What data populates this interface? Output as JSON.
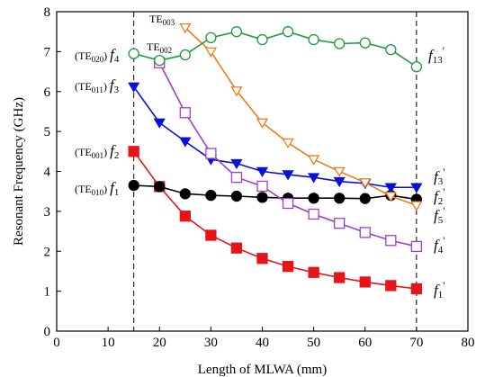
{
  "chart_data": {
    "type": "line",
    "title": "",
    "xlabel": "Length of MLWA (mm)",
    "ylabel": "Resonant Frequency (GHz)",
    "xlim": [
      0,
      80
    ],
    "ylim": [
      0,
      8
    ],
    "xticks": [
      0,
      10,
      20,
      30,
      40,
      50,
      60,
      70,
      80
    ],
    "yticks": [
      0,
      1,
      2,
      3,
      4,
      5,
      6,
      7,
      8
    ],
    "grid": false,
    "legend": "none",
    "reference_lines_x": [
      15,
      70
    ],
    "series": [
      {
        "id": "f1",
        "color": "#e8141a",
        "marker": "square-filled",
        "x": [
          15,
          20,
          25,
          30,
          35,
          40,
          45,
          50,
          55,
          60,
          65,
          70
        ],
        "y": [
          4.5,
          3.62,
          2.88,
          2.4,
          2.08,
          1.82,
          1.62,
          1.47,
          1.34,
          1.23,
          1.14,
          1.06
        ],
        "start_label": {
          "mode": "(TE",
          "sub": "001",
          "close": ")",
          "sym": "f",
          "num": "2"
        },
        "end_label": {
          "sym": "f",
          "num": "1",
          "prime": "'"
        }
      },
      {
        "id": "f2",
        "color": "#000000",
        "marker": "circle-filled",
        "x": [
          15,
          20,
          25,
          30,
          35,
          40,
          45,
          50,
          55,
          60,
          65,
          70
        ],
        "y": [
          3.65,
          3.62,
          3.44,
          3.4,
          3.38,
          3.35,
          3.33,
          3.33,
          3.33,
          3.32,
          3.4,
          3.3
        ],
        "start_label": {
          "mode": "(TE",
          "sub": "010",
          "close": ")",
          "sym": "f",
          "num": "1"
        },
        "end_label": {
          "sym": "f",
          "num": "4",
          "prime": "'"
        }
      },
      {
        "id": "f3",
        "color": "#0a10d8",
        "marker": "triangle-down-filled",
        "x": [
          15,
          20,
          25,
          30,
          35,
          40,
          45,
          50,
          55,
          60,
          65,
          70
        ],
        "y": [
          6.12,
          5.22,
          4.75,
          4.3,
          4.2,
          4.0,
          3.92,
          3.85,
          3.75,
          3.7,
          3.6,
          3.6
        ],
        "start_label": {
          "mode": "(TE",
          "sub": "011",
          "close": ")",
          "sym": "f",
          "num": "3"
        },
        "end_label": {
          "sym": "f",
          "num": "5",
          "prime": "'"
        }
      },
      {
        "id": "f4",
        "color": "#a040c8",
        "marker": "square-open",
        "x": [
          20,
          25,
          30,
          35,
          40,
          45,
          50,
          55,
          60,
          65,
          70
        ],
        "y": [
          6.72,
          5.47,
          4.45,
          3.85,
          3.63,
          3.2,
          2.93,
          2.7,
          2.47,
          2.27,
          2.12
        ],
        "start_label": {
          "mode": "TE",
          "sub": "002"
        },
        "end_label": {
          "sym": "f",
          "num": "2",
          "prime": "'"
        }
      },
      {
        "id": "f5",
        "color": "#f07c1c",
        "marker": "triangle-down-open",
        "x": [
          25,
          30,
          35,
          40,
          45,
          50,
          55,
          60,
          65,
          70
        ],
        "y": [
          7.6,
          7.0,
          6.02,
          5.22,
          4.72,
          4.3,
          4.0,
          3.72,
          3.38,
          3.15
        ],
        "start_label": {
          "mode": "TE",
          "sub": "003"
        },
        "end_label": {
          "sym": "f",
          "num": "3",
          "prime": "'"
        }
      },
      {
        "id": "f6",
        "color": "#1e9a3c",
        "marker": "circle-open",
        "x": [
          15,
          20,
          25,
          30,
          35,
          40,
          45,
          50,
          55,
          60,
          65,
          70
        ],
        "y": [
          6.95,
          6.78,
          6.92,
          7.35,
          7.5,
          7.3,
          7.5,
          7.3,
          7.2,
          7.22,
          7.05,
          6.62
        ],
        "start_label": {
          "mode": "(TE",
          "sub": "020",
          "close": ")",
          "sym": "f",
          "num": "4"
        },
        "end_label": {
          "sym": "f",
          "num": "13",
          "prime": "'"
        }
      }
    ]
  }
}
